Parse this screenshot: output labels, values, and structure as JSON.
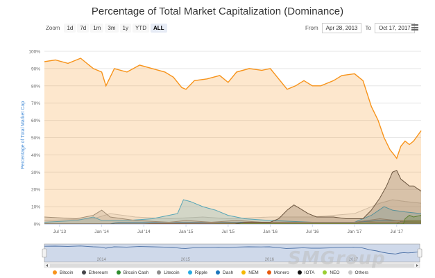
{
  "chart_data": {
    "type": "area",
    "title": "Percentage of Total Market Capitalization (Dominance)",
    "ylabel": "Percentage of Total Market Cap",
    "xlabel": "",
    "ylim": [
      0,
      100
    ],
    "y_ticks": [
      "0%",
      "10%",
      "20%",
      "30%",
      "40%",
      "50%",
      "60%",
      "70%",
      "80%",
      "90%",
      "100%"
    ],
    "x_ticks": [
      "Jul '13",
      "Jan '14",
      "Jul '14",
      "Jan '15",
      "Jul '15",
      "Jan '16",
      "Jul '16",
      "Jan '17",
      "Jul '17"
    ],
    "x_range": [
      2013.32,
      2017.79
    ],
    "series": [
      {
        "name": "Bitcoin",
        "color": "#f7931a",
        "points": [
          [
            2013.32,
            94
          ],
          [
            2013.45,
            95
          ],
          [
            2013.6,
            93
          ],
          [
            2013.75,
            96
          ],
          [
            2013.9,
            90
          ],
          [
            2014.0,
            88
          ],
          [
            2014.05,
            80
          ],
          [
            2014.15,
            90
          ],
          [
            2014.3,
            88
          ],
          [
            2014.45,
            92
          ],
          [
            2014.6,
            90
          ],
          [
            2014.75,
            88
          ],
          [
            2014.85,
            85
          ],
          [
            2014.95,
            79
          ],
          [
            2015.0,
            78
          ],
          [
            2015.1,
            83
          ],
          [
            2015.25,
            84
          ],
          [
            2015.4,
            86
          ],
          [
            2015.5,
            82
          ],
          [
            2015.6,
            88
          ],
          [
            2015.75,
            90
          ],
          [
            2015.9,
            89
          ],
          [
            2016.0,
            90
          ],
          [
            2016.1,
            84
          ],
          [
            2016.2,
            78
          ],
          [
            2016.3,
            80
          ],
          [
            2016.4,
            83
          ],
          [
            2016.5,
            80
          ],
          [
            2016.6,
            80
          ],
          [
            2016.75,
            83
          ],
          [
            2016.85,
            86
          ],
          [
            2017.0,
            87
          ],
          [
            2017.1,
            83
          ],
          [
            2017.2,
            68
          ],
          [
            2017.28,
            60
          ],
          [
            2017.35,
            50
          ],
          [
            2017.42,
            43
          ],
          [
            2017.47,
            40
          ],
          [
            2017.5,
            38
          ],
          [
            2017.55,
            45
          ],
          [
            2017.6,
            48
          ],
          [
            2017.65,
            46
          ],
          [
            2017.7,
            48
          ],
          [
            2017.76,
            52
          ],
          [
            2017.79,
            54
          ]
        ]
      },
      {
        "name": "Ethereum",
        "color": "#434348",
        "points": [
          [
            2013.32,
            0
          ],
          [
            2015.58,
            0
          ],
          [
            2015.7,
            1
          ],
          [
            2016.0,
            1
          ],
          [
            2016.1,
            3
          ],
          [
            2016.2,
            8
          ],
          [
            2016.28,
            11
          ],
          [
            2016.35,
            9
          ],
          [
            2016.45,
            6
          ],
          [
            2016.55,
            4
          ],
          [
            2016.75,
            4
          ],
          [
            2016.9,
            3
          ],
          [
            2017.0,
            3
          ],
          [
            2017.1,
            3
          ],
          [
            2017.2,
            8
          ],
          [
            2017.3,
            15
          ],
          [
            2017.38,
            22
          ],
          [
            2017.45,
            30
          ],
          [
            2017.5,
            31
          ],
          [
            2017.55,
            26
          ],
          [
            2017.6,
            24
          ],
          [
            2017.65,
            22
          ],
          [
            2017.7,
            22
          ],
          [
            2017.79,
            19
          ]
        ]
      },
      {
        "name": "Bitcoin Cash",
        "color": "#2e8b2e",
        "points": [
          [
            2013.32,
            0
          ],
          [
            2017.58,
            0
          ],
          [
            2017.6,
            3
          ],
          [
            2017.65,
            5
          ],
          [
            2017.7,
            4
          ],
          [
            2017.79,
            5
          ]
        ]
      },
      {
        "name": "Litecoin",
        "color": "#8c8c8c",
        "points": [
          [
            2013.32,
            4
          ],
          [
            2013.7,
            3
          ],
          [
            2013.9,
            5
          ],
          [
            2014.0,
            8
          ],
          [
            2014.1,
            4
          ],
          [
            2014.4,
            2
          ],
          [
            2014.8,
            1
          ],
          [
            2015.0,
            2
          ],
          [
            2015.3,
            1
          ],
          [
            2015.6,
            2
          ],
          [
            2015.9,
            1
          ],
          [
            2016.5,
            1
          ],
          [
            2017.0,
            1
          ],
          [
            2017.3,
            3
          ],
          [
            2017.5,
            2
          ],
          [
            2017.79,
            2
          ]
        ]
      },
      {
        "name": "Ripple",
        "color": "#29abe2",
        "points": [
          [
            2013.32,
            1
          ],
          [
            2013.7,
            2
          ],
          [
            2013.9,
            4
          ],
          [
            2014.0,
            2
          ],
          [
            2014.3,
            2
          ],
          [
            2014.6,
            3
          ],
          [
            2014.9,
            6
          ],
          [
            2014.97,
            14
          ],
          [
            2015.05,
            13
          ],
          [
            2015.2,
            10
          ],
          [
            2015.35,
            8
          ],
          [
            2015.5,
            5
          ],
          [
            2015.7,
            3
          ],
          [
            2016.0,
            2
          ],
          [
            2016.5,
            1
          ],
          [
            2017.0,
            1
          ],
          [
            2017.2,
            5
          ],
          [
            2017.35,
            10
          ],
          [
            2017.45,
            8
          ],
          [
            2017.6,
            7
          ],
          [
            2017.79,
            6
          ]
        ]
      },
      {
        "name": "Dash",
        "color": "#1c75bc",
        "points": [
          [
            2013.32,
            0
          ],
          [
            2014.1,
            0
          ],
          [
            2014.2,
            1
          ],
          [
            2015.0,
            1
          ],
          [
            2016.0,
            1
          ],
          [
            2017.0,
            1
          ],
          [
            2017.3,
            2
          ],
          [
            2017.79,
            2
          ]
        ]
      },
      {
        "name": "NEM",
        "color": "#f5b800",
        "points": [
          [
            2013.32,
            0
          ],
          [
            2015.3,
            0
          ],
          [
            2015.4,
            0.3
          ],
          [
            2017.0,
            0.3
          ],
          [
            2017.3,
            2
          ],
          [
            2017.79,
            1.5
          ]
        ]
      },
      {
        "name": "Monero",
        "color": "#e8590c",
        "points": [
          [
            2013.32,
            0
          ],
          [
            2014.5,
            0
          ],
          [
            2014.6,
            0.3
          ],
          [
            2016.7,
            1
          ],
          [
            2017.0,
            1
          ],
          [
            2017.79,
            1
          ]
        ]
      },
      {
        "name": "IOTA",
        "color": "#111111",
        "points": [
          [
            2013.32,
            0
          ],
          [
            2017.5,
            0
          ],
          [
            2017.55,
            1.5
          ],
          [
            2017.79,
            1.5
          ]
        ]
      },
      {
        "name": "NEO",
        "color": "#9acd32",
        "points": [
          [
            2013.32,
            0
          ],
          [
            2017.55,
            0
          ],
          [
            2017.6,
            1
          ],
          [
            2017.79,
            1
          ]
        ]
      },
      {
        "name": "Others",
        "color": "#c8c8c8",
        "points": [
          [
            2013.32,
            2
          ],
          [
            2013.9,
            3
          ],
          [
            2014.1,
            6
          ],
          [
            2014.4,
            4
          ],
          [
            2014.8,
            3
          ],
          [
            2015.2,
            4
          ],
          [
            2015.5,
            3
          ],
          [
            2016.0,
            4
          ],
          [
            2016.5,
            4
          ],
          [
            2017.0,
            6
          ],
          [
            2017.3,
            12
          ],
          [
            2017.45,
            14
          ],
          [
            2017.6,
            13
          ],
          [
            2017.79,
            12
          ]
        ]
      }
    ],
    "navigator_ticks": [
      "2014",
      "2015",
      "2016",
      "2017"
    ]
  },
  "header": {
    "zoom_label": "Zoom",
    "zoom_buttons": [
      "1d",
      "7d",
      "1m",
      "3m",
      "1y",
      "YTD",
      "ALL"
    ],
    "from_label": "From",
    "from_value": "Apr 28, 2013",
    "to_label": "To",
    "to_value": "Oct 17, 2017"
  },
  "watermark": "SMGroup"
}
